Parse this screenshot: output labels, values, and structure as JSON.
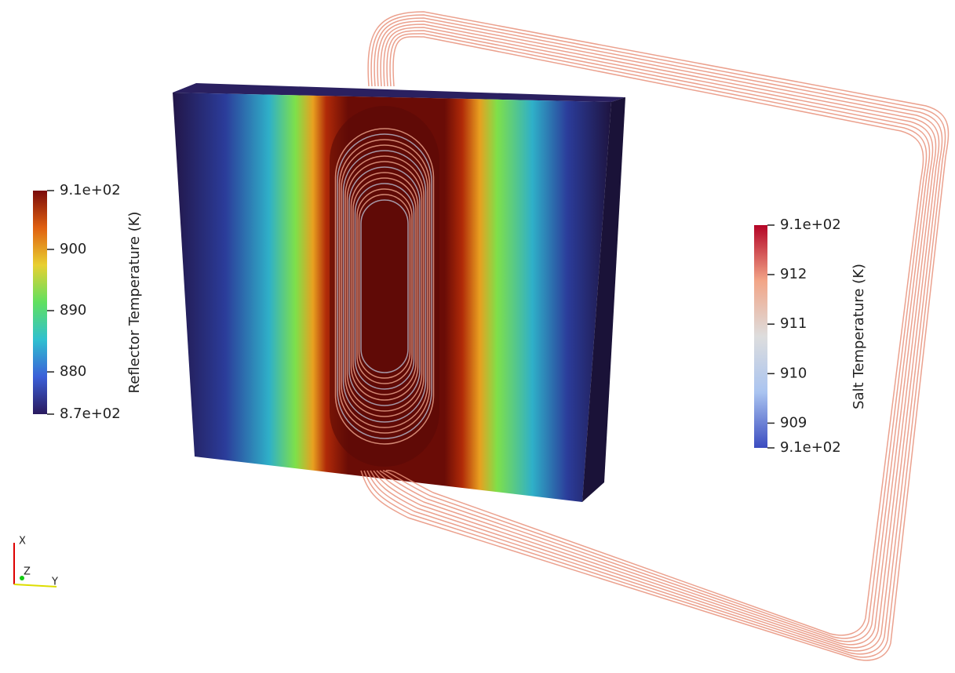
{
  "colorbars": [
    {
      "title": "Reflector Temperature (K)",
      "lim": [
        873.1,
        909.6
      ],
      "ticks": [
        {
          "value": 909.6,
          "label": "9.1e+02"
        },
        900,
        890,
        880,
        {
          "value": 873.1,
          "label": "8.7e+02"
        }
      ],
      "colors": [
        "#2a1a5e",
        "#3b5fd8",
        "#2fc0d0",
        "#60e060",
        "#e8d030",
        "#e06010",
        "#7a0a0a"
      ]
    },
    {
      "title": "Salt Temperature (K)",
      "lim": [
        908.5,
        913.0
      ],
      "ticks": [
        {
          "value": 913.0,
          "label": "9.1e+02"
        },
        912,
        911,
        910,
        909,
        {
          "value": 908.5,
          "label": "9.1e+02"
        }
      ],
      "colors": [
        "#3b4cc0",
        "#aac4f0",
        "#dddddd",
        "#f2a587",
        "#b40426"
      ]
    }
  ],
  "orientation_axes": {
    "x": "X",
    "y": "Y",
    "z": "Z"
  }
}
